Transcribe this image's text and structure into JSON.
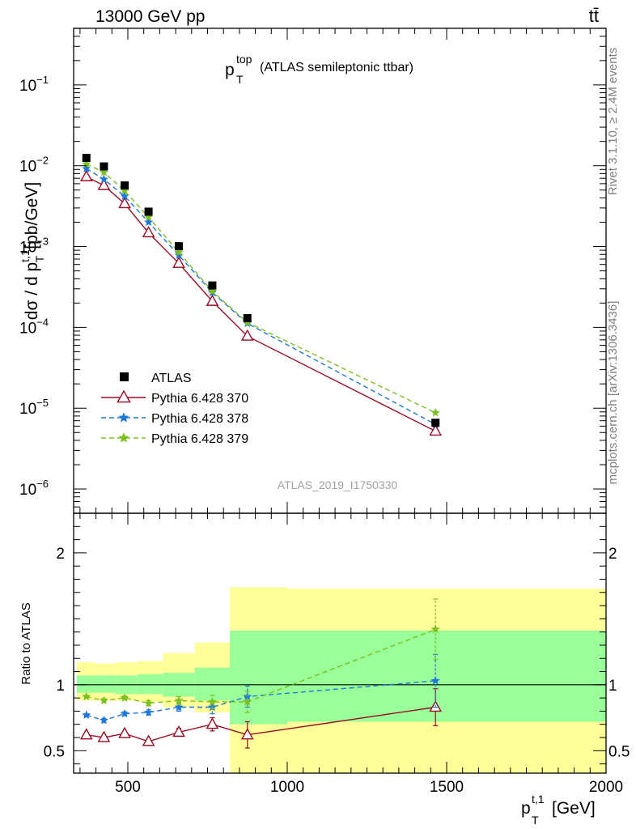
{
  "header": {
    "collision": "13000 GeV pp",
    "process": "tt̄"
  },
  "side_labels": {
    "rivet": "Rivet 3.1.10, ≥ 2.4M events",
    "mcplots": "mcplots.cern.ch [arXiv:1306.3436]"
  },
  "colors": {
    "atlas": "#000000",
    "p370": "#9b0a23",
    "p378": "#1e78dc",
    "p379": "#7cbf1e",
    "band_stat": "#99ff99",
    "band_total": "#ffff99"
  },
  "chart_data": {
    "type": "line",
    "title_main": "p",
    "title_sup": "top",
    "title_sub": "T",
    "title_rest": "(ATLAS semileptonic ttbar)",
    "analysis": "ATLAS_2019_I1750330",
    "ylabel_main": "dσ / d p",
    "ylabel_sup": "t,1",
    "ylabel_sub": "T",
    "ylabel_unit": "[pb/GeV]",
    "ratio_ylabel": "Ratio to ATLAS",
    "xlabel_main": "p",
    "xlabel_sup": "t,1",
    "xlabel_sub": "T",
    "xlabel_unit": "[GeV]",
    "xlim": [
      330,
      2000
    ],
    "ylim_log10": [
      -6.3,
      -0.3
    ],
    "ratio_ylim": [
      0.33,
      2.3
    ],
    "top_yticks": [
      {
        "exp": -1,
        "label": "10",
        "sup": "−1"
      },
      {
        "exp": -2,
        "label": "10",
        "sup": "−2"
      },
      {
        "exp": -3,
        "label": "10",
        "sup": "−3"
      },
      {
        "exp": -4,
        "label": "10",
        "sup": "−4"
      },
      {
        "exp": -5,
        "label": "10",
        "sup": "−5"
      },
      {
        "exp": -6,
        "label": "10",
        "sup": "−6"
      }
    ],
    "xticks": [
      {
        "v": 500,
        "label": "500"
      },
      {
        "v": 1000,
        "label": "1000"
      },
      {
        "v": 1500,
        "label": "1500"
      },
      {
        "v": 2000,
        "label": "2000"
      }
    ],
    "ratio_yticks": [
      {
        "v": 0.5,
        "label": "0.5"
      },
      {
        "v": 1,
        "label": "1"
      },
      {
        "v": 2,
        "label": "2"
      }
    ],
    "x": [
      370,
      425,
      490,
      565,
      660,
      765,
      875,
      1465
    ],
    "atlas": [
      0.0125,
      0.0098,
      0.0057,
      0.0027,
      0.00101,
      0.00033,
      0.00013,
      6.6e-06
    ],
    "series": [
      {
        "name": "Pythia 6.428 370",
        "key": "p370",
        "marker": "triangle",
        "dash": "solid",
        "values": [
          0.0073,
          0.0057,
          0.0034,
          0.00148,
          0.00062,
          0.00021,
          7.8e-05,
          5.2e-06
        ],
        "ratio": [
          0.62,
          0.6,
          0.63,
          0.57,
          0.64,
          0.7,
          0.62,
          0.83
        ],
        "ratio_err": [
          0.015,
          0.015,
          0.015,
          0.02,
          0.03,
          0.05,
          0.1,
          0.14
        ]
      },
      {
        "name": "Pythia 6.428 378",
        "key": "p378",
        "marker": "star",
        "dash": "6,4",
        "values": [
          0.0092,
          0.0068,
          0.0042,
          0.002,
          0.00078,
          0.00027,
          0.000112,
          6.3e-06
        ],
        "ratio": [
          0.77,
          0.73,
          0.78,
          0.79,
          0.83,
          0.83,
          0.91,
          1.03
        ],
        "ratio_err": [
          0.01,
          0.015,
          0.015,
          0.02,
          0.03,
          0.05,
          0.08,
          0.2
        ]
      },
      {
        "name": "Pythia 6.428 379",
        "key": "p379",
        "marker": "star",
        "dash": "6,4",
        "values": [
          0.0105,
          0.0083,
          0.0049,
          0.0023,
          0.00085,
          0.00028,
          0.000115,
          8.8e-06
        ],
        "ratio": [
          0.91,
          0.88,
          0.9,
          0.86,
          0.88,
          0.87,
          0.87,
          1.42
        ],
        "ratio_err": [
          0.01,
          0.015,
          0.015,
          0.02,
          0.03,
          0.05,
          0.08,
          0.23
        ]
      }
    ],
    "bins": [
      {
        "lo": 340,
        "hi": 400,
        "stat": [
          0.94,
          1.07
        ],
        "tot": [
          0.88,
          1.17
        ]
      },
      {
        "lo": 400,
        "hi": 460,
        "stat": [
          0.94,
          1.07
        ],
        "tot": [
          0.88,
          1.16
        ]
      },
      {
        "lo": 460,
        "hi": 530,
        "stat": [
          0.93,
          1.07
        ],
        "tot": [
          0.88,
          1.17
        ]
      },
      {
        "lo": 530,
        "hi": 610,
        "stat": [
          0.93,
          1.08
        ],
        "tot": [
          0.87,
          1.18
        ]
      },
      {
        "lo": 610,
        "hi": 710,
        "stat": [
          0.91,
          1.09
        ],
        "tot": [
          0.83,
          1.24
        ]
      },
      {
        "lo": 710,
        "hi": 820,
        "stat": [
          0.88,
          1.13
        ],
        "tot": [
          0.79,
          1.32
        ]
      },
      {
        "lo": 820,
        "hi": 1000,
        "stat": [
          0.7,
          1.41
        ],
        "tot": [
          0.33,
          1.74
        ]
      },
      {
        "lo": 1000,
        "hi": 2000,
        "stat": [
          0.72,
          1.41
        ],
        "tot": [
          0.33,
          1.73
        ]
      }
    ]
  }
}
